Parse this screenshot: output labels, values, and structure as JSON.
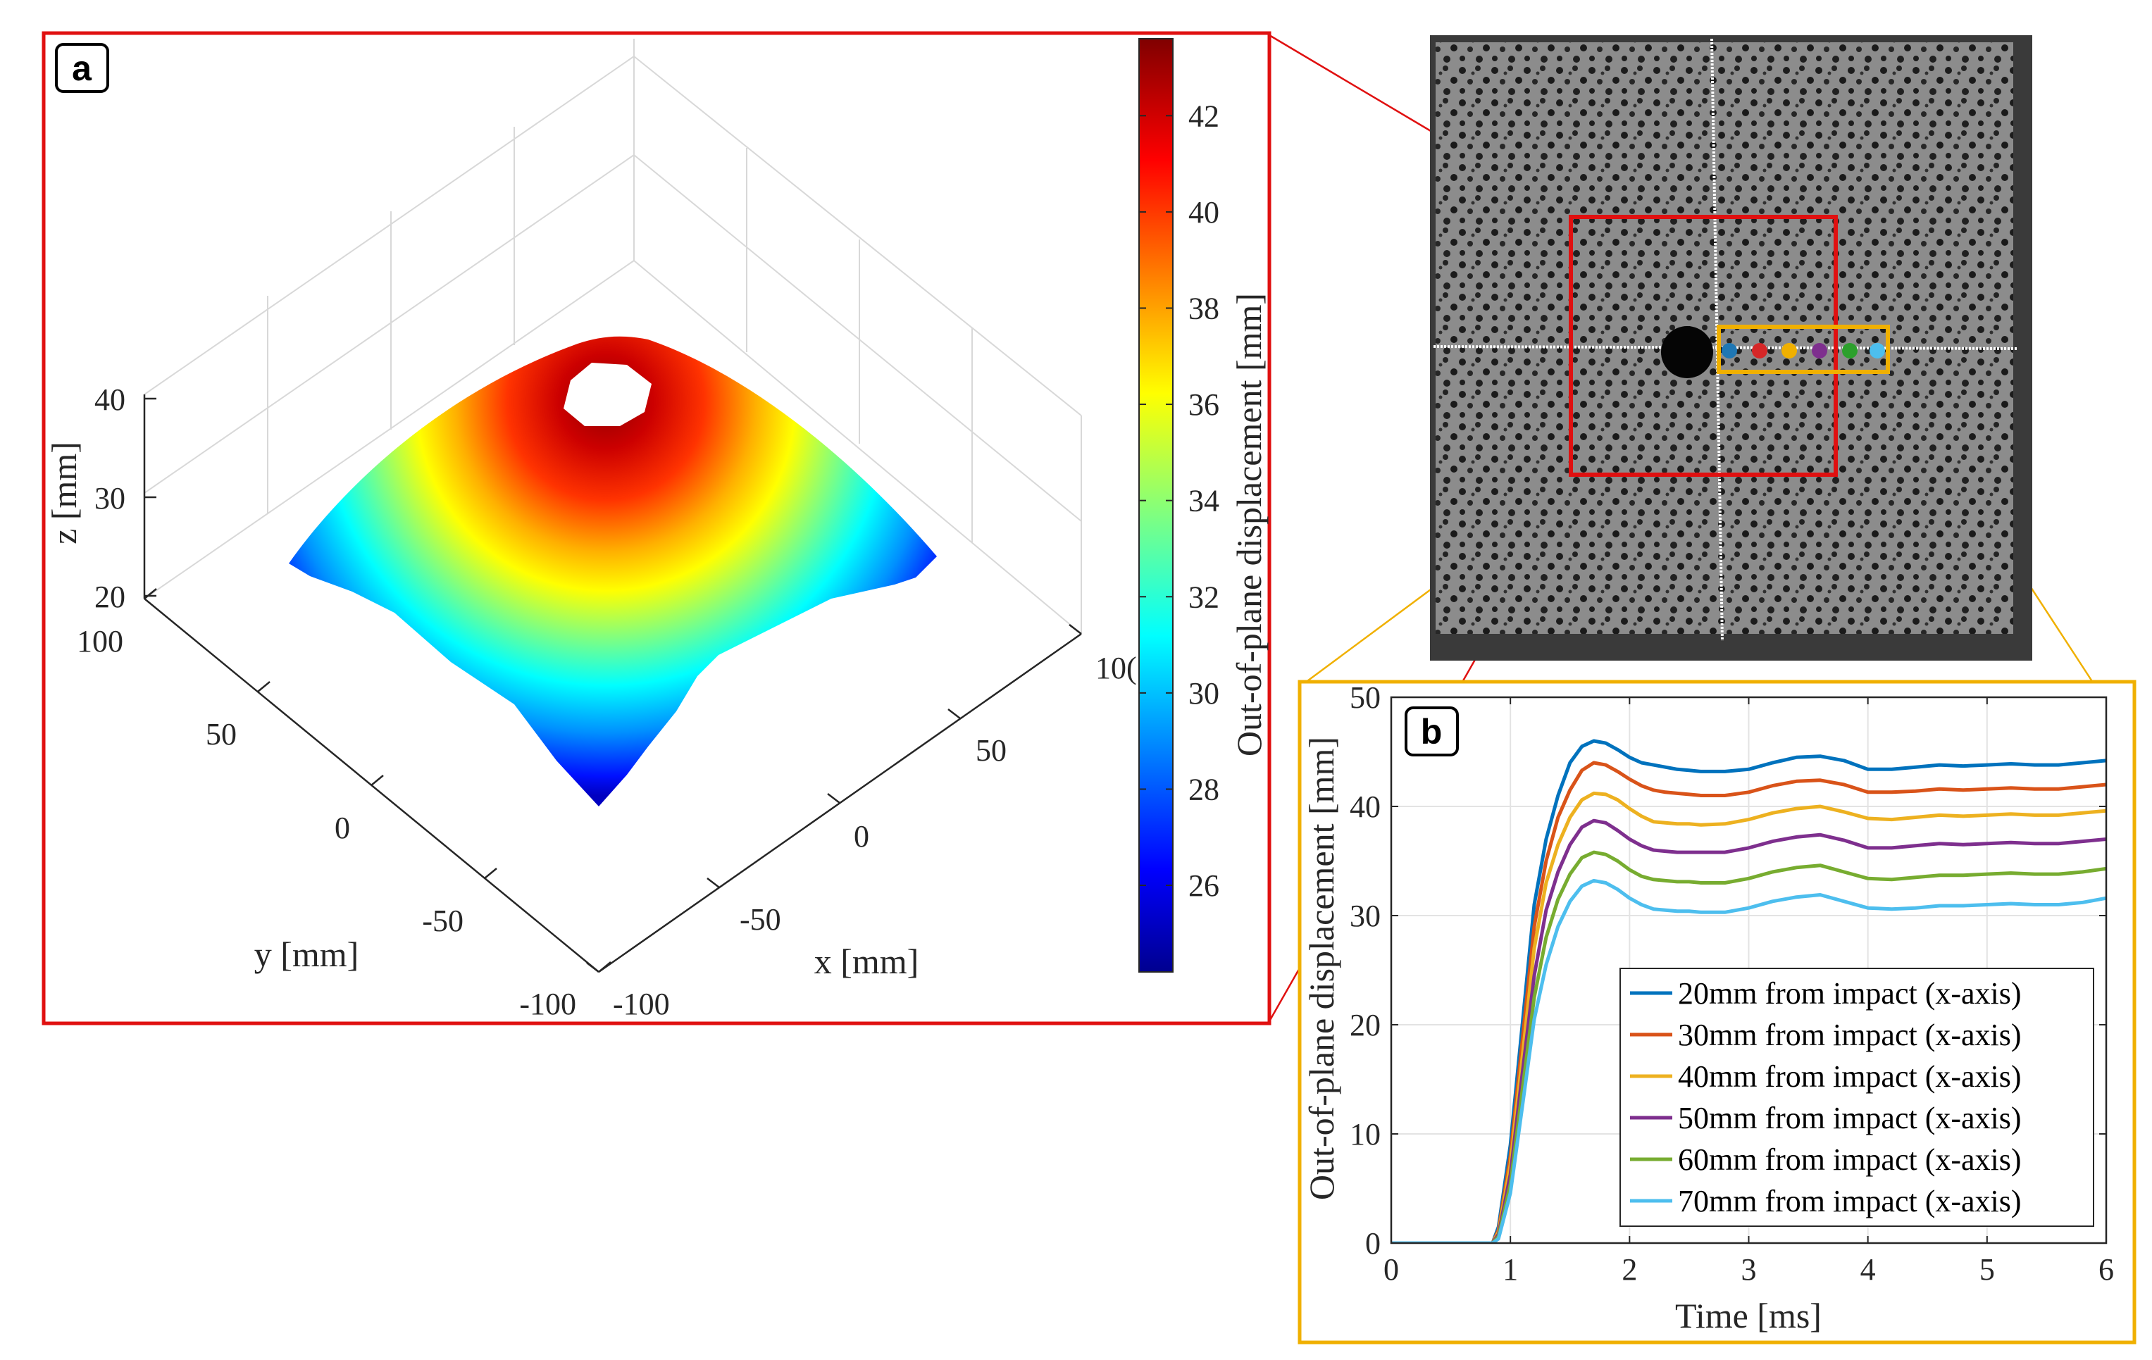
{
  "panel_a": {
    "label": "a",
    "frame_color": "#e01010",
    "surface": {
      "x_range": [
        -100,
        100
      ],
      "y_range": [
        -100,
        100
      ],
      "z_range": [
        20,
        45
      ],
      "peak_mm": 45,
      "edge_mm": 24
    },
    "axes": {
      "x_label": "x [mm]",
      "y_label": "y [mm]",
      "z_label": "z [mm]",
      "x_ticks": [
        "-100",
        "-50",
        "0",
        "50",
        "10("
      ],
      "y_ticks": [
        "-100",
        "-50",
        "0",
        "50",
        "100"
      ],
      "z_ticks": [
        "20",
        "30",
        "40"
      ]
    },
    "colorbar": {
      "label": "Out-of-plane displacement [mm]",
      "min": 24.2,
      "max": 43.6,
      "tick_labels": [
        "26",
        "28",
        "30",
        "32",
        "34",
        "36",
        "38",
        "40",
        "42"
      ],
      "tick_values": [
        26,
        28,
        30,
        32,
        34,
        36,
        38,
        40,
        42
      ],
      "colormap": "jet"
    }
  },
  "specimen_photo": {
    "region_box_color": "#e01010",
    "point_box_color": "#f0b000",
    "point_colors": [
      "#1f77b4",
      "#d62728",
      "#f0b000",
      "#7e2f8e",
      "#2ca02c",
      "#4dbeee"
    ]
  },
  "panel_b": {
    "label": "b",
    "frame_color": "#f0b000",
    "chart_data": {
      "type": "line",
      "title": "",
      "xlabel": "Time [ms]",
      "ylabel": "Out-of-plane displacement [mm]",
      "xlim": [
        0,
        6
      ],
      "ylim": [
        0,
        50
      ],
      "x_ticks": [
        "0",
        "1",
        "2",
        "3",
        "4",
        "5",
        "6"
      ],
      "y_ticks": [
        "0",
        "10",
        "20",
        "30",
        "40",
        "50"
      ],
      "grid": true,
      "legend_position": "bottom-right",
      "x": [
        0,
        0.5,
        0.85,
        0.9,
        1.0,
        1.1,
        1.2,
        1.3,
        1.4,
        1.5,
        1.6,
        1.7,
        1.8,
        1.9,
        2.0,
        2.1,
        2.2,
        2.3,
        2.4,
        2.5,
        2.6,
        2.8,
        3.0,
        3.2,
        3.4,
        3.6,
        3.8,
        4.0,
        4.2,
        4.4,
        4.6,
        4.8,
        5.0,
        5.2,
        5.4,
        5.6,
        5.8,
        6.0
      ],
      "series": [
        {
          "name": "20mm from impact (x-axis)",
          "color": "#0072bd",
          "values": [
            0,
            0,
            0,
            1.5,
            9,
            20,
            31,
            37,
            41,
            44,
            45.5,
            46,
            45.8,
            45.2,
            44.5,
            44,
            43.8,
            43.6,
            43.4,
            43.3,
            43.2,
            43.2,
            43.4,
            44,
            44.5,
            44.6,
            44.2,
            43.4,
            43.4,
            43.6,
            43.8,
            43.7,
            43.8,
            43.9,
            43.8,
            43.8,
            44,
            44.2
          ]
        },
        {
          "name": "30mm from impact (x-axis)",
          "color": "#d95319",
          "values": [
            0,
            0,
            0,
            1.2,
            8,
            18.5,
            29,
            35,
            39,
            41.5,
            43.3,
            44,
            43.8,
            43.2,
            42.5,
            41.9,
            41.5,
            41.3,
            41.2,
            41.1,
            41.0,
            41.0,
            41.3,
            41.9,
            42.3,
            42.4,
            42.0,
            41.3,
            41.3,
            41.4,
            41.6,
            41.5,
            41.6,
            41.7,
            41.6,
            41.6,
            41.8,
            42
          ]
        },
        {
          "name": "40mm from impact (x-axis)",
          "color": "#edb120",
          "values": [
            0,
            0,
            0,
            1.0,
            7.2,
            17,
            27,
            33,
            36.5,
            39,
            40.6,
            41.2,
            41.1,
            40.6,
            39.8,
            39.1,
            38.6,
            38.5,
            38.4,
            38.4,
            38.3,
            38.4,
            38.8,
            39.4,
            39.8,
            40.0,
            39.5,
            38.9,
            38.8,
            39.0,
            39.2,
            39.1,
            39.2,
            39.3,
            39.2,
            39.2,
            39.4,
            39.6
          ]
        },
        {
          "name": "50mm from impact (x-axis)",
          "color": "#7e2f8e",
          "values": [
            0,
            0,
            0,
            0.8,
            6.3,
            15.5,
            24.5,
            30.5,
            34,
            36.5,
            38.1,
            38.7,
            38.5,
            37.8,
            37.0,
            36.4,
            36.0,
            35.9,
            35.8,
            35.8,
            35.8,
            35.8,
            36.2,
            36.8,
            37.2,
            37.4,
            36.9,
            36.2,
            36.2,
            36.4,
            36.6,
            36.5,
            36.6,
            36.7,
            36.6,
            36.6,
            36.8,
            37
          ]
        },
        {
          "name": "60mm from impact (x-axis)",
          "color": "#77ac30",
          "values": [
            0,
            0,
            0,
            0.6,
            5.4,
            14,
            22.5,
            28,
            31.5,
            33.8,
            35.3,
            35.8,
            35.6,
            35.0,
            34.2,
            33.6,
            33.3,
            33.2,
            33.1,
            33.1,
            33.0,
            33.0,
            33.4,
            34.0,
            34.4,
            34.6,
            34.0,
            33.4,
            33.3,
            33.5,
            33.7,
            33.7,
            33.8,
            33.9,
            33.8,
            33.8,
            34.0,
            34.3
          ]
        },
        {
          "name": "70mm from impact (x-axis)",
          "color": "#4dbeee",
          "values": [
            0,
            0,
            0,
            0.4,
            4.6,
            12.5,
            20.5,
            25.5,
            29,
            31.3,
            32.7,
            33.2,
            33.0,
            32.4,
            31.6,
            31.0,
            30.6,
            30.5,
            30.4,
            30.4,
            30.3,
            30.3,
            30.7,
            31.3,
            31.7,
            31.9,
            31.3,
            30.7,
            30.6,
            30.7,
            30.9,
            30.9,
            31.0,
            31.1,
            31.0,
            31.0,
            31.2,
            31.6
          ]
        }
      ]
    }
  }
}
